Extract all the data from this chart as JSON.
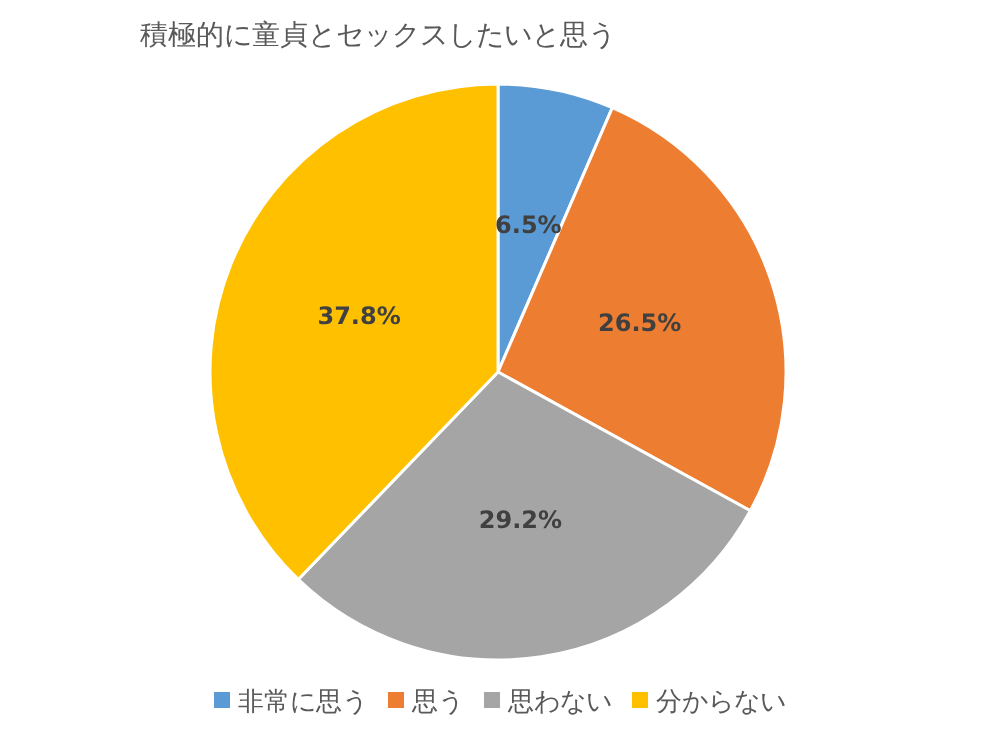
{
  "chart_data": {
    "type": "pie",
    "title": "積極的に童貞とセックスしたいと思う",
    "categories": [
      "非常に思う",
      "思う",
      "思わない",
      "分からない"
    ],
    "values": [
      6.5,
      26.5,
      29.2,
      37.8
    ],
    "value_labels": [
      "6.5%",
      "26.5%",
      "29.2%",
      "37.8%"
    ],
    "colors": [
      "#5b9bd5",
      "#ed7d31",
      "#a5a5a5",
      "#ffc000"
    ],
    "legend": "bottom"
  }
}
